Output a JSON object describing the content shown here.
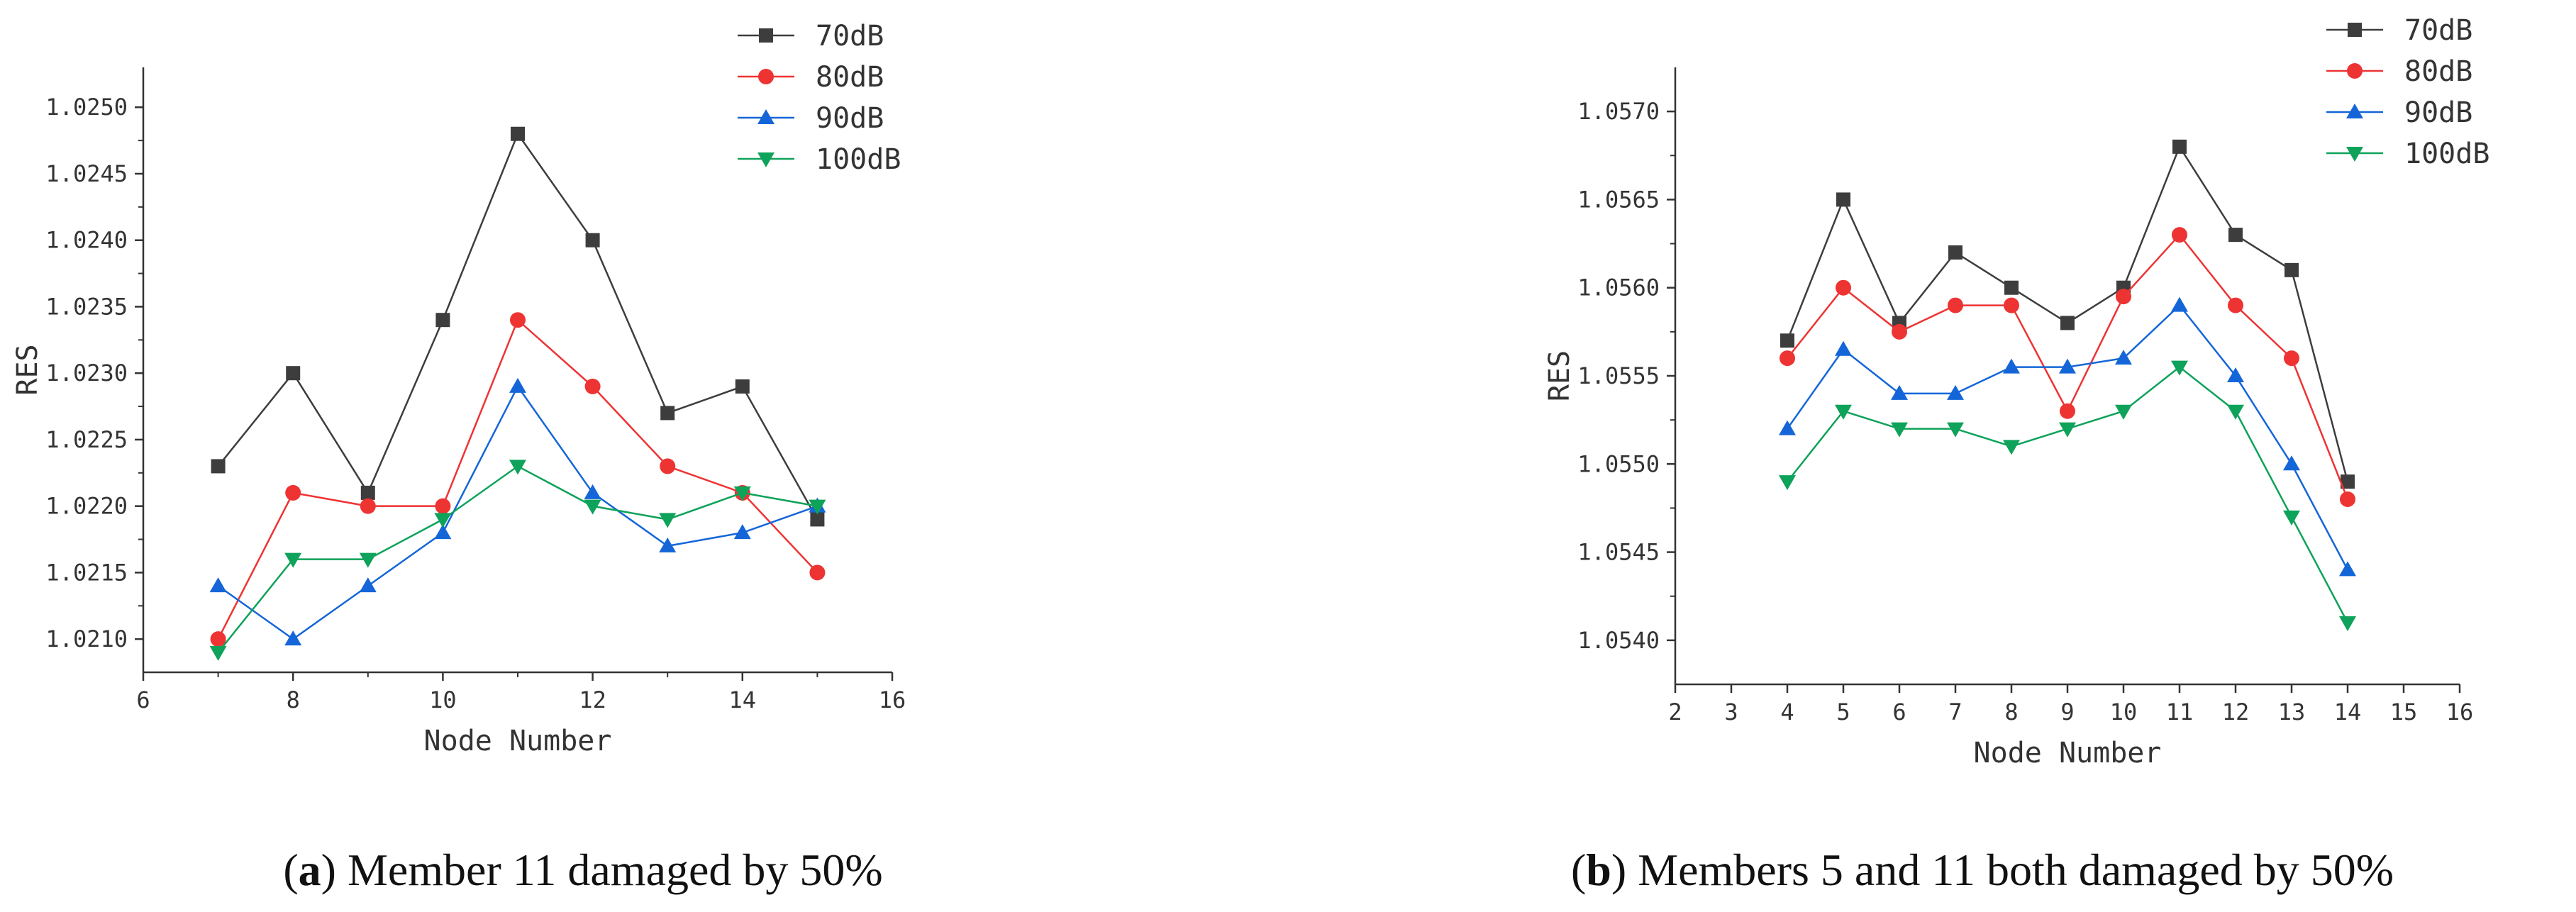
{
  "chart_data": [
    {
      "type": "line",
      "caption_letter": "a",
      "caption_text": "Member 11 damaged by 50%",
      "xlabel": "Node Number",
      "ylabel": "RES",
      "xlim": [
        6,
        16
      ],
      "ylim": [
        1.02075,
        1.0253
      ],
      "xticks": [
        6,
        8,
        10,
        12,
        14,
        16
      ],
      "yticks": [
        1.021,
        1.0215,
        1.022,
        1.0225,
        1.023,
        1.0235,
        1.024,
        1.0245,
        1.025
      ],
      "ytick_labels": [
        "1.0210",
        "1.0215",
        "1.0220",
        "1.0225",
        "1.0230",
        "1.0235",
        "1.0240",
        "1.0245",
        "1.0250"
      ],
      "x": [
        7,
        8,
        9,
        10,
        11,
        12,
        13,
        14,
        15
      ],
      "legend_position": "top-right",
      "series": [
        {
          "name": "70dB",
          "color": "#3d3d3d",
          "marker": "square",
          "values": [
            1.0223,
            1.023,
            1.0221,
            1.0234,
            1.0248,
            1.024,
            1.0227,
            1.0229,
            1.0219
          ]
        },
        {
          "name": "80dB",
          "color": "#ee3333",
          "marker": "circle",
          "values": [
            1.021,
            1.0221,
            1.022,
            1.022,
            1.0234,
            1.0229,
            1.0223,
            1.0221,
            1.0215
          ]
        },
        {
          "name": "90dB",
          "color": "#1466d8",
          "marker": "triangle-up",
          "values": [
            1.0214,
            1.021,
            1.0214,
            1.0218,
            1.0229,
            1.0221,
            1.0217,
            1.0218,
            1.022
          ]
        },
        {
          "name": "100dB",
          "color": "#0ea25a",
          "marker": "triangle-down",
          "values": [
            1.0209,
            1.0216,
            1.0216,
            1.0219,
            1.0223,
            1.022,
            1.0219,
            1.0221,
            1.022
          ]
        }
      ]
    },
    {
      "type": "line",
      "caption_letter": "b",
      "caption_text": "Members 5 and 11 both damaged by 50%",
      "xlabel": "Node Number",
      "ylabel": "RES",
      "xlim": [
        2,
        16
      ],
      "ylim": [
        1.05375,
        1.05725
      ],
      "xticks": [
        2,
        3,
        4,
        5,
        6,
        7,
        8,
        9,
        10,
        11,
        12,
        13,
        14,
        15,
        16
      ],
      "yticks": [
        1.054,
        1.0545,
        1.055,
        1.0555,
        1.056,
        1.0565,
        1.057
      ],
      "ytick_labels": [
        "1.0540",
        "1.0545",
        "1.0550",
        "1.0555",
        "1.0560",
        "1.0565",
        "1.0570"
      ],
      "x": [
        4,
        5,
        6,
        7,
        8,
        9,
        10,
        11,
        12,
        13,
        14
      ],
      "legend_position": "top-right",
      "series": [
        {
          "name": "70dB",
          "color": "#3d3d3d",
          "marker": "square",
          "values": [
            1.0557,
            1.0565,
            1.0558,
            1.0562,
            1.056,
            1.0558,
            1.056,
            1.0568,
            1.0563,
            1.0561,
            1.0549
          ]
        },
        {
          "name": "80dB",
          "color": "#ee3333",
          "marker": "circle",
          "values": [
            1.0556,
            1.056,
            1.05575,
            1.0559,
            1.0559,
            1.0553,
            1.05595,
            1.0563,
            1.0559,
            1.0556,
            1.0548
          ]
        },
        {
          "name": "90dB",
          "color": "#1466d8",
          "marker": "triangle-up",
          "values": [
            1.0552,
            1.05565,
            1.0554,
            1.0554,
            1.05555,
            1.05555,
            1.0556,
            1.0559,
            1.0555,
            1.055,
            1.0544
          ]
        },
        {
          "name": "100dB",
          "color": "#0ea25a",
          "marker": "triangle-down",
          "values": [
            1.0549,
            1.0553,
            1.0552,
            1.0552,
            1.0551,
            1.0552,
            1.0553,
            1.05555,
            1.0553,
            1.0547,
            1.0541
          ]
        }
      ]
    }
  ]
}
